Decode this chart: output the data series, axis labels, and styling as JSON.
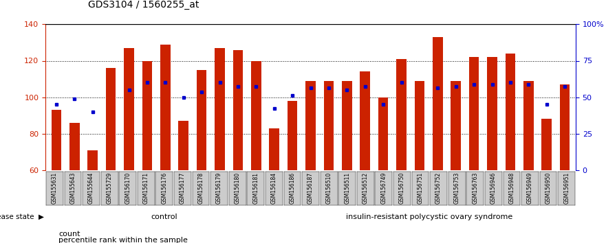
{
  "title": "GDS3104 / 1560255_at",
  "samples": [
    "GSM155631",
    "GSM155643",
    "GSM155644",
    "GSM155729",
    "GSM156170",
    "GSM156171",
    "GSM156176",
    "GSM156177",
    "GSM156178",
    "GSM156179",
    "GSM156180",
    "GSM156181",
    "GSM156184",
    "GSM156186",
    "GSM156187",
    "GSM156510",
    "GSM156511",
    "GSM156512",
    "GSM156749",
    "GSM156750",
    "GSM156751",
    "GSM156752",
    "GSM156753",
    "GSM156763",
    "GSM156946",
    "GSM156948",
    "GSM156949",
    "GSM156950",
    "GSM156951"
  ],
  "counts": [
    93,
    86,
    71,
    116,
    127,
    120,
    129,
    87,
    115,
    127,
    126,
    120,
    83,
    98,
    109,
    109,
    109,
    114,
    100,
    121,
    109,
    133,
    109,
    122,
    122,
    124,
    109,
    88,
    107
  ],
  "percentile_ranks": [
    96,
    99,
    92,
    null,
    104,
    108,
    108,
    100,
    103,
    108,
    106,
    106,
    94,
    101,
    105,
    105,
    104,
    106,
    96,
    108,
    null,
    105,
    106,
    107,
    107,
    108,
    107,
    96,
    106
  ],
  "control_count": 13,
  "disease_count": 16,
  "control_label": "control",
  "disease_label": "insulin-resistant polycystic ovary syndrome",
  "bar_color": "#cc2200",
  "dot_color": "#0000cc",
  "ylim_left": [
    60,
    140
  ],
  "yticks_left": [
    60,
    80,
    100,
    120,
    140
  ],
  "ylim_right": [
    0,
    100
  ],
  "yticks_right": [
    0,
    25,
    50,
    75,
    100
  ],
  "yright_labels": [
    "0",
    "25",
    "50",
    "75",
    "100%"
  ],
  "control_bg": "#ccffcc",
  "disease_bg": "#55dd55",
  "label_bg": "#cccccc",
  "bar_width": 0.55
}
